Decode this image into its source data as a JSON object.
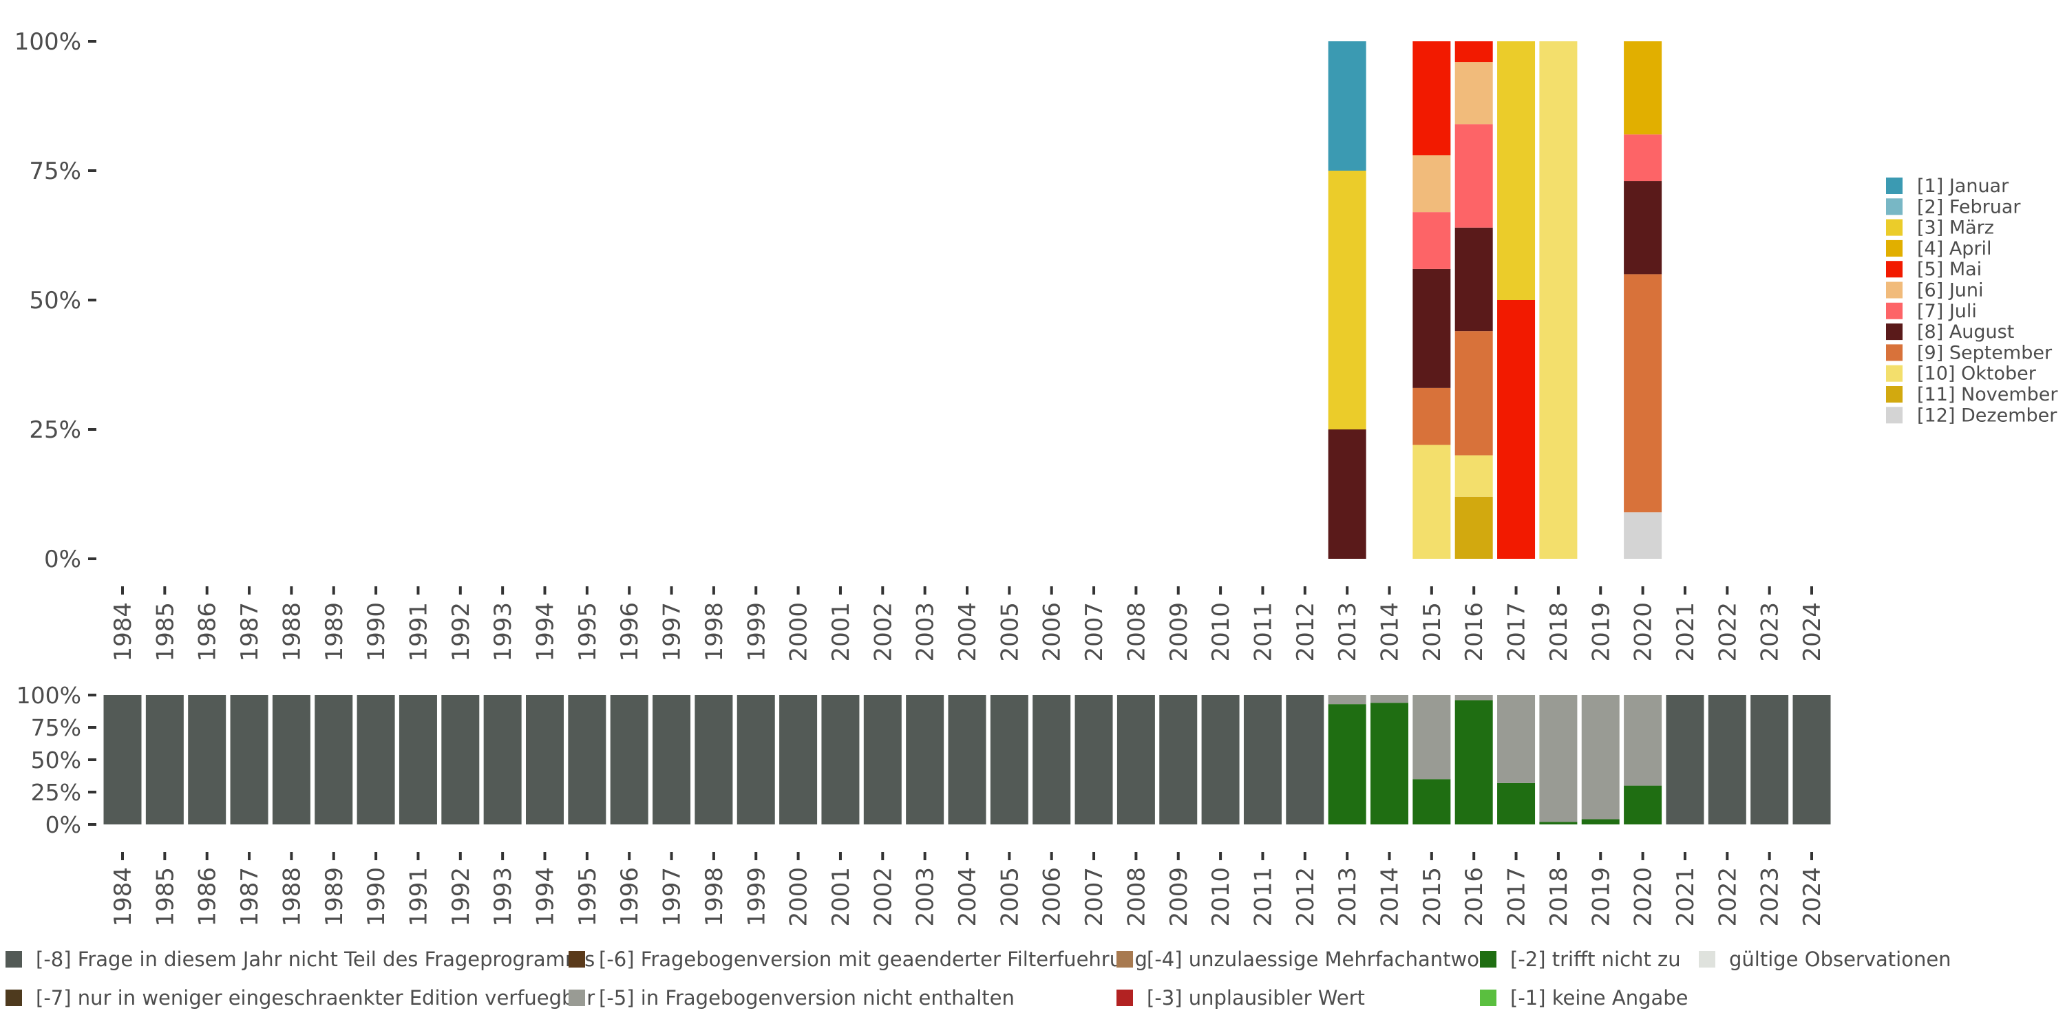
{
  "chart_data": [
    {
      "type": "bar",
      "stacked": true,
      "title": "",
      "xlabel": "",
      "ylabel": "",
      "ylim": [
        0,
        100
      ],
      "y_ticks": [
        "0%",
        "25%",
        "50%",
        "75%",
        "100%"
      ],
      "categories": [
        "1984",
        "1985",
        "1986",
        "1987",
        "1988",
        "1989",
        "1990",
        "1991",
        "1992",
        "1993",
        "1994",
        "1995",
        "1996",
        "1997",
        "1998",
        "1999",
        "2000",
        "2001",
        "2002",
        "2003",
        "2004",
        "2005",
        "2006",
        "2007",
        "2008",
        "2009",
        "2010",
        "2011",
        "2012",
        "2013",
        "2014",
        "2015",
        "2016",
        "2017",
        "2018",
        "2019",
        "2020",
        "2021",
        "2022",
        "2023",
        "2024"
      ],
      "series": [
        {
          "code": "[12]",
          "name": "[12] Dezember",
          "color": "#d4d4d4",
          "values": {
            "2020": 9
          }
        },
        {
          "code": "[11]",
          "name": "[11] November",
          "color": "#d2a90f",
          "values": {
            "2016": 12
          }
        },
        {
          "code": "[10]",
          "name": "[10] Oktober",
          "color": "#f3df6c",
          "values": {
            "2015": 22,
            "2016": 8,
            "2018": 100
          }
        },
        {
          "code": "[9]",
          "name": "[9] September",
          "color": "#d8723a",
          "values": {
            "2015": 11,
            "2016": 24,
            "2020": 46
          }
        },
        {
          "code": "[8]",
          "name": "[8] August",
          "color": "#5a1a1a",
          "values": {
            "2013": 25,
            "2015": 23,
            "2016": 20,
            "2020": 18
          }
        },
        {
          "code": "[7]",
          "name": "[7] Juli",
          "color": "#fd6467",
          "values": {
            "2015": 11,
            "2016": 20,
            "2020": 9
          }
        },
        {
          "code": "[6]",
          "name": "[6] Juni",
          "color": "#f1bb7b",
          "values": {
            "2015": 11,
            "2016": 12
          }
        },
        {
          "code": "[5]",
          "name": "[5] Mai",
          "color": "#f21a00",
          "values": {
            "2015": 22,
            "2016": 4,
            "2017": 50
          }
        },
        {
          "code": "[4]",
          "name": "[4] April",
          "color": "#e1af00",
          "values": {
            "2020": 18
          }
        },
        {
          "code": "[3]",
          "name": "[3] März",
          "color": "#ebcc2a",
          "values": {
            "2013": 50,
            "2017": 50
          }
        },
        {
          "code": "[2]",
          "name": "[2] Februar",
          "color": "#78b7c5",
          "values": {}
        },
        {
          "code": "[1]",
          "name": "[1] Januar",
          "color": "#3b9ab2",
          "values": {
            "2013": 25
          }
        }
      ],
      "legend": {
        "position": "right",
        "entries": [
          "[1] Januar",
          "[2] Februar",
          "[3] März",
          "[4] April",
          "[5] Mai",
          "[6] Juni",
          "[7] Juli",
          "[8] August",
          "[9] September",
          "[10] Oktober",
          "[11] November",
          "[12] Dezember"
        ]
      }
    },
    {
      "type": "bar",
      "stacked": true,
      "title": "",
      "xlabel": "",
      "ylabel": "",
      "ylim": [
        0,
        100
      ],
      "y_ticks": [
        "0%",
        "25%",
        "50%",
        "75%",
        "100%"
      ],
      "categories": [
        "1984",
        "1985",
        "1986",
        "1987",
        "1988",
        "1989",
        "1990",
        "1991",
        "1992",
        "1993",
        "1994",
        "1995",
        "1996",
        "1997",
        "1998",
        "1999",
        "2000",
        "2001",
        "2002",
        "2003",
        "2004",
        "2005",
        "2006",
        "2007",
        "2008",
        "2009",
        "2010",
        "2011",
        "2012",
        "2013",
        "2014",
        "2015",
        "2016",
        "2017",
        "2018",
        "2019",
        "2020",
        "2021",
        "2022",
        "2023",
        "2024"
      ],
      "series": [
        {
          "code": "[-2]",
          "name": "[-2] trifft nicht zu",
          "color": "#1f6e12",
          "values": {
            "2013": 93,
            "2014": 94,
            "2015": 35,
            "2016": 96,
            "2017": 32,
            "2018": 2,
            "2019": 4,
            "2020": 30
          }
        },
        {
          "code": "[-5]",
          "name": "[-5] in Fragebogenversion nicht enthalten",
          "color": "#999b94",
          "values": {
            "2013": 7,
            "2014": 6,
            "2015": 65,
            "2016": 4,
            "2017": 68,
            "2018": 98,
            "2019": 96,
            "2020": 70
          }
        },
        {
          "code": "[-8]",
          "name": "[-8] Frage in diesem Jahr nicht Teil des Frageprogramms",
          "color": "#535a56",
          "values": {
            "1984": 100,
            "1985": 100,
            "1986": 100,
            "1987": 100,
            "1988": 100,
            "1989": 100,
            "1990": 100,
            "1991": 100,
            "1992": 100,
            "1993": 100,
            "1994": 100,
            "1995": 100,
            "1996": 100,
            "1997": 100,
            "1998": 100,
            "1999": 100,
            "2000": 100,
            "2001": 100,
            "2002": 100,
            "2003": 100,
            "2004": 100,
            "2005": 100,
            "2006": 100,
            "2007": 100,
            "2008": 100,
            "2009": 100,
            "2010": 100,
            "2011": 100,
            "2012": 100,
            "2021": 100,
            "2022": 100,
            "2023": 100,
            "2024": 100
          }
        }
      ],
      "legend": {
        "position": "bottom",
        "entries": [
          {
            "name": "[-8] Frage in diesem Jahr nicht Teil des Frageprogramms",
            "color": "#535a56"
          },
          {
            "name": "[-6] Fragebogenversion mit geaenderter Filterfuehrung",
            "color": "#5a3a1a"
          },
          {
            "name": "[-4] unzulaessige Mehrfachantwort",
            "color": "#a87a50"
          },
          {
            "name": "[-2] trifft nicht zu",
            "color": "#1f6e12"
          },
          {
            "name": "gültige Observationen",
            "color": "#dfe2dd"
          },
          {
            "name": "[-7] nur in weniger eingeschraenkter Edition verfuegbar",
            "color": "#4e3a1e"
          },
          {
            "name": "[-5] in Fragebogenversion nicht enthalten",
            "color": "#999b94"
          },
          {
            "name": "[-3] unplausibler Wert",
            "color": "#b22222"
          },
          {
            "name": "[-1] keine Angabe",
            "color": "#5abf3f"
          }
        ]
      }
    }
  ]
}
